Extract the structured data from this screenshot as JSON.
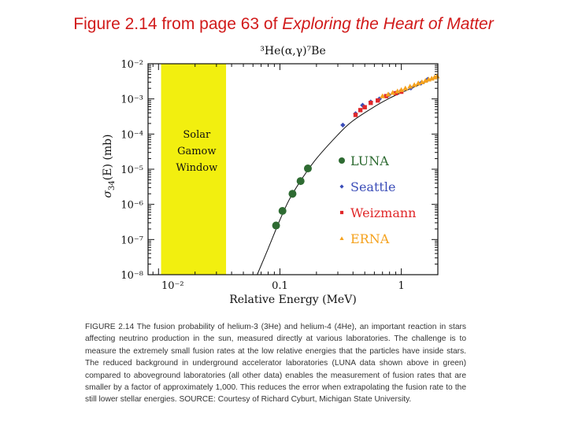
{
  "slide": {
    "title_prefix": "Figure 2.14 from page 63 of ",
    "title_book": "Exploring the Heart of Matter"
  },
  "chart_data": {
    "type": "scatter",
    "title": "³He(α,γ)⁷Be",
    "xlabel": "Relative Energy (MeV)",
    "ylabel_symbol": "σ",
    "ylabel_sub": "34",
    "ylabel_rest": "(E) (mb)",
    "x_scale": "log",
    "y_scale": "log",
    "xlim": [
      0.0082,
      2.0
    ],
    "ylim": [
      1e-08,
      0.01
    ],
    "x_ticks": [
      {
        "value": 0.01,
        "label": "10⁻²"
      },
      {
        "value": 0.1,
        "label": "0.1"
      },
      {
        "value": 1,
        "label": "1"
      }
    ],
    "y_ticks": [
      {
        "value": 0.01,
        "label": "10⁻²"
      },
      {
        "value": 0.001,
        "label": "10⁻³"
      },
      {
        "value": 0.0001,
        "label": "10⁻⁴"
      },
      {
        "value": 1e-05,
        "label": "10⁻⁵"
      },
      {
        "value": 1e-06,
        "label": "10⁻⁶"
      },
      {
        "value": 1e-07,
        "label": "10⁻⁷"
      },
      {
        "value": 1e-08,
        "label": "10⁻⁸"
      }
    ],
    "region": {
      "lines": [
        "Solar",
        "Gamow",
        "Window"
      ],
      "x_range": [
        0.0105,
        0.036
      ],
      "color": "#f2ef0f"
    },
    "legend_position": "right",
    "series": [
      {
        "name": "LUNA",
        "marker": "circle",
        "color": "#2e6b32",
        "x": [
          0.093,
          0.105,
          0.127,
          0.148,
          0.17
        ],
        "y": [
          2.5e-07,
          6.5e-07,
          2e-06,
          4.6e-06,
          1.05e-05
        ]
      },
      {
        "name": "Seattle",
        "marker": "diamond",
        "color": "#3b4db8",
        "x": [
          0.33,
          0.42,
          0.48,
          0.56,
          0.66,
          0.79,
          0.9,
          1.0,
          1.2,
          1.45,
          1.65
        ],
        "y": [
          0.00018,
          0.00038,
          0.00066,
          0.00082,
          0.001,
          0.0013,
          0.00145,
          0.00165,
          0.00205,
          0.0028,
          0.0036
        ]
      },
      {
        "name": "Weizmann",
        "marker": "square",
        "color": "#e0282a",
        "x": [
          0.42,
          0.46,
          0.5,
          0.56,
          0.64,
          0.75,
          0.9,
          1.0
        ],
        "y": [
          0.00035,
          0.00048,
          0.00058,
          0.00077,
          0.0009,
          0.0012,
          0.00145,
          0.0016
        ]
      },
      {
        "name": "ERNA",
        "marker": "triangle",
        "color": "#f5a21e",
        "x": [
          0.7,
          0.78,
          0.85,
          0.93,
          1.0,
          1.08,
          1.18,
          1.28,
          1.38,
          1.48,
          1.58,
          1.68,
          1.78,
          1.88,
          1.97
        ],
        "y": [
          0.0012,
          0.00135,
          0.0015,
          0.00165,
          0.0018,
          0.002,
          0.00225,
          0.0025,
          0.0028,
          0.003,
          0.0033,
          0.0036,
          0.0038,
          0.0041,
          0.0044
        ]
      }
    ],
    "fit_curve": {
      "x": [
        0.065,
        0.08,
        0.1,
        0.12,
        0.15,
        0.2,
        0.3,
        0.4,
        0.6,
        0.8,
        1.0,
        1.4,
        2.0
      ],
      "y": [
        1e-08,
        5.5e-08,
        3.6e-07,
        1.4e-06,
        5e-06,
        2e-05,
        9.5e-05,
        0.00024,
        0.0006,
        0.00105,
        0.0015,
        0.0025,
        0.0042
      ]
    }
  },
  "caption": {
    "text": "FIGURE 2.14  The fusion probability of helium-3 (3He) and helium-4 (4He), an important reaction in stars affecting neutrino production in the sun, measured directly at various laboratories. The challenge is to measure the extremely small fusion rates at the low relative energies that the particles have inside stars. The reduced background in underground accelerator laboratories (LUNA data shown above in green) compared to aboveground laboratories (all other data) enables the measurement of fusion rates that are smaller by a factor of approximately 1,000. This reduces the error when extrapolating the fusion rate to the still lower stellar energies. SOURCE: Courtesy of Richard Cyburt, Michigan State University."
  }
}
